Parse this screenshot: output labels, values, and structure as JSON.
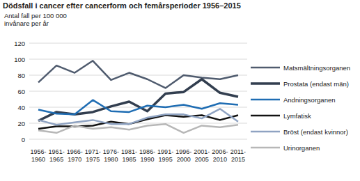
{
  "chart_data": {
    "type": "line",
    "title": "Dödsfall i cancer efter cancerform och femårsperioder 1956–2015",
    "y_label": [
      "Antal fall per 100 000",
      "invånare per år"
    ],
    "categories": [
      "1956-1960",
      "1961-1965",
      "1966-1970",
      "1971-1975",
      "1976-1980",
      "1981-1985",
      "1986-1990",
      "1991-1995",
      "1996-2000",
      "2001-2005",
      "2006-2010",
      "2011-2015"
    ],
    "series": [
      {
        "name": "Matsmältningsorganen",
        "color": "#4f5b6e",
        "values": [
          71,
          92,
          83,
          98,
          74,
          83,
          75,
          64,
          80,
          77,
          75,
          80
        ]
      },
      {
        "name": "Prostata (endast män)",
        "color": "#323e4f",
        "values": [
          23,
          34,
          31,
          34,
          41,
          47,
          35,
          57,
          59,
          75,
          58,
          53
        ]
      },
      {
        "name": "Andningsorganen",
        "color": "#1f6db3",
        "values": [
          37,
          32,
          31,
          49,
          35,
          34,
          42,
          40,
          43,
          38,
          45,
          43
        ]
      },
      {
        "name": "Lymfatisk",
        "color": "#111111",
        "values": [
          13,
          16,
          16,
          17,
          22,
          19,
          25,
          30,
          28,
          30,
          24,
          30
        ]
      },
      {
        "name": "Bröst (endast kvinnor)",
        "color": "#8fa3c2",
        "values": [
          24,
          18,
          21,
          24,
          19,
          19,
          27,
          31,
          31,
          26,
          38,
          22
        ]
      },
      {
        "name": "Urinorganen",
        "color": "#b7b7b7",
        "values": [
          11,
          8,
          17,
          13,
          15,
          12,
          17,
          19,
          8,
          17,
          15,
          18
        ]
      }
    ],
    "ylim": [
      0,
      120
    ],
    "yticks": [
      0,
      20,
      40,
      60,
      80,
      100,
      120
    ],
    "grid": true,
    "legend": "right"
  }
}
